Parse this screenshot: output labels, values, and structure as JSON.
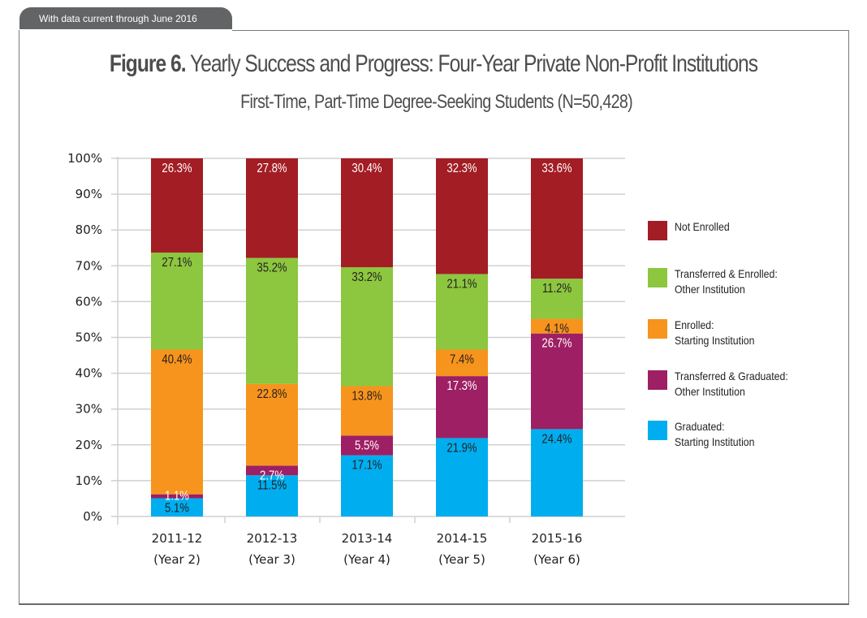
{
  "header_tab": {
    "text": "With data current through June 2016"
  },
  "title": {
    "bold": "Figure 6.",
    "rest": " Yearly Success and Progress: Four-Year Private Non-Profit Institutions"
  },
  "subtitle": "First-Time, Part-Time Degree-Seeking Students (N=50,428)",
  "chart_data": {
    "type": "bar",
    "stacked": true,
    "title": "Figure 6. Yearly Success and Progress: Four-Year Private Non-Profit Institutions",
    "subtitle": "First-Time, Part-Time Degree-Seeking Students (N=50,428)",
    "xlabel": "",
    "ylabel": "",
    "ylim": [
      0,
      100
    ],
    "yticks": [
      "0%",
      "10%",
      "20%",
      "30%",
      "40%",
      "50%",
      "60%",
      "70%",
      "80%",
      "90%",
      "100%"
    ],
    "grid": true,
    "legend_position": "right",
    "categories": [
      {
        "line1": "2011-12",
        "line2": "(Year 2)"
      },
      {
        "line1": "2012-13",
        "line2": "(Year 3)"
      },
      {
        "line1": "2013-14",
        "line2": "(Year 4)"
      },
      {
        "line1": "2014-15",
        "line2": "(Year 5)"
      },
      {
        "line1": "2015-16",
        "line2": "(Year 6)"
      }
    ],
    "series": [
      {
        "name": "Graduated: Starting Institution",
        "legend_lines": [
          "Graduated:",
          "Starting Institution"
        ],
        "color": "#00aeef",
        "label_color": "#231f20",
        "values": [
          5.1,
          11.5,
          17.1,
          21.9,
          24.4
        ]
      },
      {
        "name": "Transferred & Graduated: Other Institution",
        "legend_lines": [
          "Transferred & Graduated:",
          "Other Institution"
        ],
        "color": "#9e1f63",
        "label_color": "#ffffff",
        "values": [
          1.1,
          2.7,
          5.5,
          17.3,
          26.7
        ]
      },
      {
        "name": "Enrolled: Starting Institution",
        "legend_lines": [
          "Enrolled:",
          "Starting Institution"
        ],
        "color": "#f7941d",
        "label_color": "#231f20",
        "values": [
          40.4,
          22.8,
          13.8,
          7.4,
          4.1
        ]
      },
      {
        "name": "Transferred & Enrolled: Other Institution",
        "legend_lines": [
          "Transferred & Enrolled:",
          "Other Institution"
        ],
        "color": "#8dc63f",
        "label_color": "#231f20",
        "values": [
          27.1,
          35.2,
          33.2,
          21.1,
          11.2
        ]
      },
      {
        "name": "Not Enrolled",
        "legend_lines": [
          "Not Enrolled"
        ],
        "color": "#a31d24",
        "label_color": "#ffffff",
        "values": [
          26.3,
          27.8,
          30.4,
          32.3,
          33.6
        ]
      }
    ],
    "legend_order": [
      "Not Enrolled",
      "Transferred & Enrolled: Other Institution",
      "Enrolled: Starting Institution",
      "Transferred & Graduated: Other Institution",
      "Graduated: Starting Institution"
    ]
  }
}
